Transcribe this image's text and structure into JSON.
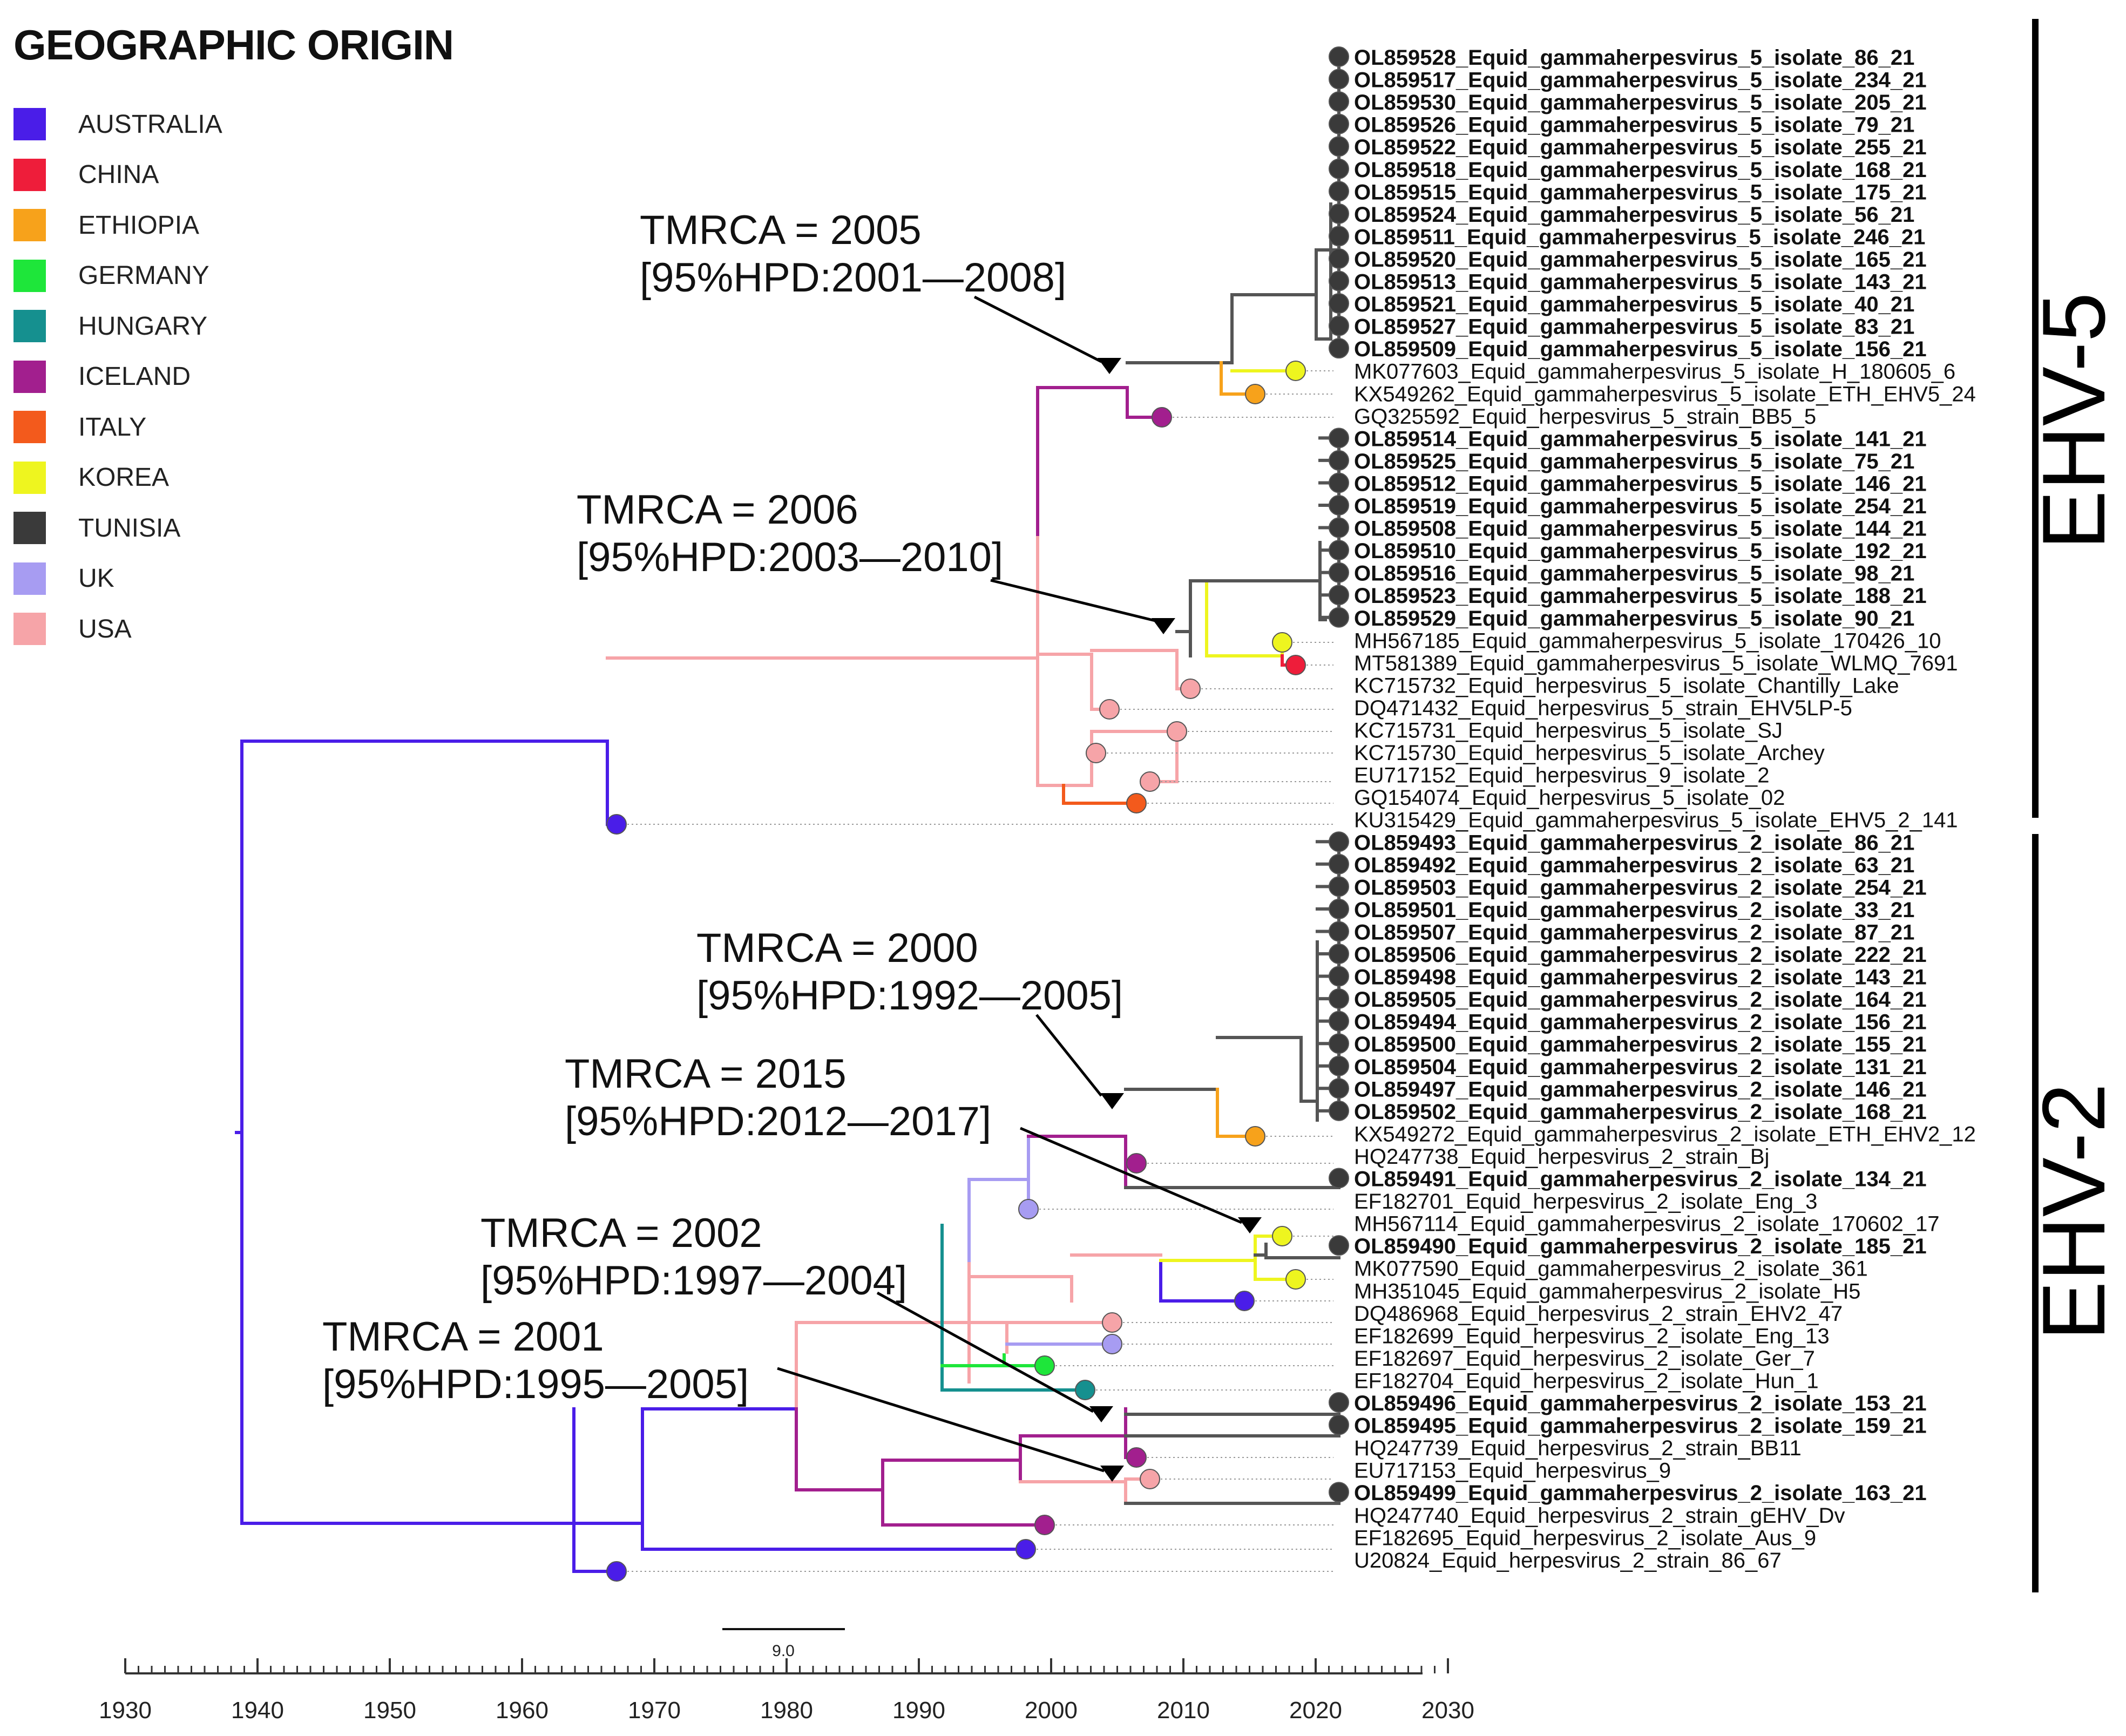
{
  "legend": {
    "title": "GEOGRAPHIC ORIGIN",
    "items": [
      {
        "label": "AUSTRALIA",
        "color": "#4a1de8"
      },
      {
        "label": "CHINA",
        "color": "#ee1d3a"
      },
      {
        "label": "ETHIOPIA",
        "color": "#f7a21b"
      },
      {
        "label": "GERMANY",
        "color": "#1ee63a"
      },
      {
        "label": "HUNGARY",
        "color": "#15908f"
      },
      {
        "label": "ICELAND",
        "color": "#a21f8e"
      },
      {
        "label": "ITALY",
        "color": "#f35a1c"
      },
      {
        "label": "KOREA",
        "color": "#eef51f"
      },
      {
        "label": "TUNISIA",
        "color": "#3a3a3a"
      },
      {
        "label": "UK",
        "color": "#a79cf2"
      },
      {
        "label": "USA",
        "color": "#f6a4a8"
      }
    ]
  },
  "clades": {
    "top": "EHV-5",
    "bottom": "EHV-2"
  },
  "annotations": [
    {
      "line1": "TMRCA = 2005",
      "line2": "[95%HPD:2001—2008]"
    },
    {
      "line1": "TMRCA = 2006",
      "line2": "[95%HPD:2003—2010]"
    },
    {
      "line1": "TMRCA = 2000",
      "line2": "[95%HPD:1992—2005]"
    },
    {
      "line1": "TMRCA = 2015",
      "line2": "[95%HPD:2012—2017]"
    },
    {
      "line1": "TMRCA = 2002",
      "line2": "[95%HPD:1997—2004]"
    },
    {
      "line1": "TMRCA = 2001",
      "line2": "[95%HPD:1995—2005]"
    }
  ],
  "scale_bar": {
    "label": "9.0"
  },
  "axis": {
    "ticks": [
      "1930",
      "1940",
      "1950",
      "1960",
      "1970",
      "1980",
      "1990",
      "2000",
      "2010",
      "2020",
      "2030"
    ]
  },
  "taxa": [
    {
      "label": "OL859528_Equid_gammaherpesvirus_5_isolate_86_21",
      "bold": true
    },
    {
      "label": "OL859517_Equid_gammaherpesvirus_5_isolate_234_21",
      "bold": true
    },
    {
      "label": "OL859530_Equid_gammaherpesvirus_5_isolate_205_21",
      "bold": true
    },
    {
      "label": "OL859526_Equid_gammaherpesvirus_5_isolate_79_21",
      "bold": true
    },
    {
      "label": "OL859522_Equid_gammaherpesvirus_5_isolate_255_21",
      "bold": true
    },
    {
      "label": "OL859518_Equid_gammaherpesvirus_5_isolate_168_21",
      "bold": true
    },
    {
      "label": "OL859515_Equid_gammaherpesvirus_5_isolate_175_21",
      "bold": true
    },
    {
      "label": "OL859524_Equid_gammaherpesvirus_5_isolate_56_21",
      "bold": true
    },
    {
      "label": "OL859511_Equid_gammaherpesvirus_5_isolate_246_21",
      "bold": true
    },
    {
      "label": "OL859520_Equid_gammaherpesvirus_5_isolate_165_21",
      "bold": true
    },
    {
      "label": "OL859513_Equid_gammaherpesvirus_5_isolate_143_21",
      "bold": true
    },
    {
      "label": "OL859521_Equid_gammaherpesvirus_5_isolate_40_21",
      "bold": true
    },
    {
      "label": "OL859527_Equid_gammaherpesvirus_5_isolate_83_21",
      "bold": true
    },
    {
      "label": "OL859509_Equid_gammaherpesvirus_5_isolate_156_21",
      "bold": true
    },
    {
      "label": "MK077603_Equid_gammaherpesvirus_5_isolate_H_180605_6",
      "bold": false
    },
    {
      "label": "KX549262_Equid_gammaherpesvirus_5_isolate_ETH_EHV5_24",
      "bold": false
    },
    {
      "label": "GQ325592_Equid_herpesvirus_5_strain_BB5_5",
      "bold": false
    },
    {
      "label": "OL859514_Equid_gammaherpesvirus_5_isolate_141_21",
      "bold": true
    },
    {
      "label": "OL859525_Equid_gammaherpesvirus_5_isolate_75_21",
      "bold": true
    },
    {
      "label": "OL859512_Equid_gammaherpesvirus_5_isolate_146_21",
      "bold": true
    },
    {
      "label": "OL859519_Equid_gammaherpesvirus_5_isolate_254_21",
      "bold": true
    },
    {
      "label": "OL859508_Equid_gammaherpesvirus_5_isolate_144_21",
      "bold": true
    },
    {
      "label": "OL859510_Equid_gammaherpesvirus_5_isolate_192_21",
      "bold": true
    },
    {
      "label": "OL859516_Equid_gammaherpesvirus_5_isolate_98_21",
      "bold": true
    },
    {
      "label": "OL859523_Equid_gammaherpesvirus_5_isolate_188_21",
      "bold": true
    },
    {
      "label": "OL859529_Equid_gammaherpesvirus_5_isolate_90_21",
      "bold": true
    },
    {
      "label": "MH567185_Equid_gammaherpesvirus_5_isolate_170426_10",
      "bold": false
    },
    {
      "label": "MT581389_Equid_gammaherpesvirus_5_isolate_WLMQ_7691",
      "bold": false
    },
    {
      "label": "KC715732_Equid_herpesvirus_5_isolate_Chantilly_Lake",
      "bold": false
    },
    {
      "label": "DQ471432_Equid_herpesvirus_5_strain_EHV5LP-5",
      "bold": false
    },
    {
      "label": "KC715731_Equid_herpesvirus_5_isolate_SJ",
      "bold": false
    },
    {
      "label": "KC715730_Equid_herpesvirus_5_isolate_Archey",
      "bold": false
    },
    {
      "label": "EU717152_Equid_herpesvirus_9_isolate_2",
      "bold": false
    },
    {
      "label": "GQ154074_Equid_herpesvirus_5_isolate_02",
      "bold": false
    },
    {
      "label": "KU315429_Equid_gammaherpesvirus_5_isolate_EHV5_2_141",
      "bold": false
    },
    {
      "label": "OL859493_Equid_gammaherpesvirus_2_isolate_86_21",
      "bold": true
    },
    {
      "label": "OL859492_Equid_gammaherpesvirus_2_isolate_63_21",
      "bold": true
    },
    {
      "label": "OL859503_Equid_gammaherpesvirus_2_isolate_254_21",
      "bold": true
    },
    {
      "label": "OL859501_Equid_gammaherpesvirus_2_isolate_33_21",
      "bold": true
    },
    {
      "label": "OL859507_Equid_gammaherpesvirus_2_isolate_87_21",
      "bold": true
    },
    {
      "label": "OL859506_Equid_gammaherpesvirus_2_isolate_222_21",
      "bold": true
    },
    {
      "label": "OL859498_Equid_gammaherpesvirus_2_isolate_143_21",
      "bold": true
    },
    {
      "label": "OL859505_Equid_gammaherpesvirus_2_isolate_164_21",
      "bold": true
    },
    {
      "label": "OL859494_Equid_gammaherpesvirus_2_isolate_156_21",
      "bold": true
    },
    {
      "label": "OL859500_Equid_gammaherpesvirus_2_isolate_155_21",
      "bold": true
    },
    {
      "label": "OL859504_Equid_gammaherpesvirus_2_isolate_131_21",
      "bold": true
    },
    {
      "label": "OL859497_Equid_gammaherpesvirus_2_isolate_146_21",
      "bold": true
    },
    {
      "label": "OL859502_Equid_gammaherpesvirus_2_isolate_168_21",
      "bold": true
    },
    {
      "label": "KX549272_Equid_gammaherpesvirus_2_isolate_ETH_EHV2_12",
      "bold": false
    },
    {
      "label": "HQ247738_Equid_herpesvirus_2_strain_Bj",
      "bold": false
    },
    {
      "label": "OL859491_Equid_gammaherpesvirus_2_isolate_134_21",
      "bold": true
    },
    {
      "label": "EF182701_Equid_herpesvirus_2_isolate_Eng_3",
      "bold": false
    },
    {
      "label": "MH567114_Equid_gammaherpesvirus_2_isolate_170602_17",
      "bold": false
    },
    {
      "label": "OL859490_Equid_gammaherpesvirus_2_isolate_185_21",
      "bold": true
    },
    {
      "label": "MK077590_Equid_gammaherpesvirus_2_isolate_361",
      "bold": false
    },
    {
      "label": "MH351045_Equid_gammaherpesvirus_2_isolate_H5",
      "bold": false
    },
    {
      "label": "DQ486968_Equid_herpesvirus_2_strain_EHV2_47",
      "bold": false
    },
    {
      "label": "EF182699_Equid_herpesvirus_2_isolate_Eng_13",
      "bold": false
    },
    {
      "label": "EF182697_Equid_herpesvirus_2_isolate_Ger_7",
      "bold": false
    },
    {
      "label": "EF182704_Equid_herpesvirus_2_isolate_Hun_1",
      "bold": false
    },
    {
      "label": "OL859496_Equid_gammaherpesvirus_2_isolate_153_21",
      "bold": true
    },
    {
      "label": "OL859495_Equid_gammaherpesvirus_2_isolate_159_21",
      "bold": true
    },
    {
      "label": "HQ247739_Equid_herpesvirus_2_strain_BB11",
      "bold": false
    },
    {
      "label": "EU717153_Equid_herpesvirus_9",
      "bold": false
    },
    {
      "label": "OL859499_Equid_gammaherpesvirus_2_isolate_163_21",
      "bold": true
    },
    {
      "label": "HQ247740_Equid_herpesvirus_2_strain_gEHV_Dv",
      "bold": false
    },
    {
      "label": "EF182695_Equid_herpesvirus_2_isolate_Aus_9",
      "bold": false
    },
    {
      "label": "U20824_Equid_herpesvirus_2_strain_86_67",
      "bold": false
    }
  ]
}
